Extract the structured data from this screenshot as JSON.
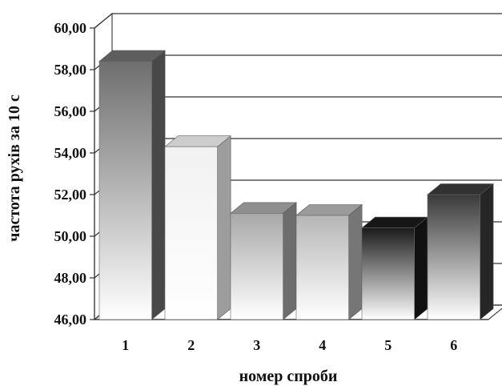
{
  "chart_data": {
    "type": "bar",
    "title": "",
    "xlabel": "номер спроби",
    "ylabel": "частота рухів за 10 с",
    "categories": [
      "1",
      "2",
      "3",
      "4",
      "5",
      "6"
    ],
    "values": [
      58.4,
      54.3,
      51.1,
      51.0,
      50.4,
      52.0
    ],
    "ylim": [
      46,
      60
    ],
    "yticks": [
      "46,00",
      "48,00",
      "50,00",
      "52,00",
      "54,00",
      "56,00",
      "58,00",
      "60,00"
    ],
    "grid": true,
    "bar_colors": [
      "#6e6e6e",
      "#f1f1f1",
      "#a8a8a8",
      "#b6b6b6",
      "#1a1a1a",
      "#3a3a3a"
    ]
  }
}
